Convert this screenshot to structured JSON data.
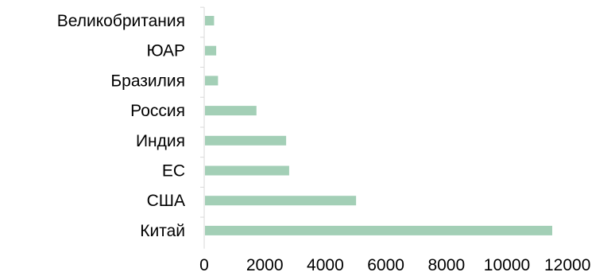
{
  "chart_data": {
    "type": "bar",
    "orientation": "horizontal",
    "categories": [
      "Великобритания",
      "ЮАР",
      "Бразилия",
      "Россия",
      "Индия",
      "ЕС",
      "США",
      "Китай"
    ],
    "values": [
      300,
      370,
      430,
      1700,
      2680,
      2780,
      4990,
      11470
    ],
    "xlim": [
      0,
      12000
    ],
    "x_ticks": [
      "0",
      "2000",
      "4000",
      "6000",
      "8000",
      "10000",
      "12000"
    ],
    "title": "",
    "xlabel": "",
    "ylabel": "",
    "grid": false,
    "legend": "none",
    "bar_color": "#a3cfb6",
    "axis_color": "#d9d9d9"
  }
}
